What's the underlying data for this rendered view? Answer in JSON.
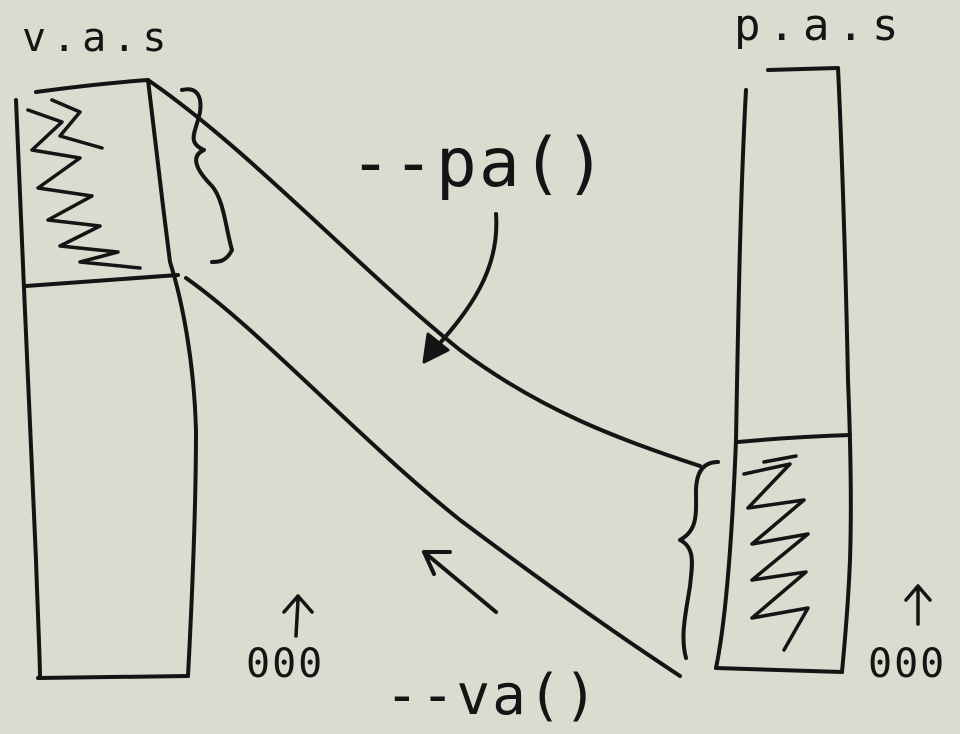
{
  "labels": {
    "virtual_space": "v.a.s",
    "physical_space": "p.a.s",
    "to_physical_fn": "--pa()",
    "to_virtual_fn": "--va()",
    "address_zero_left": "000",
    "address_zero_right": "000"
  },
  "colors": {
    "background": "#dcdbd0",
    "ink": "#141414"
  }
}
